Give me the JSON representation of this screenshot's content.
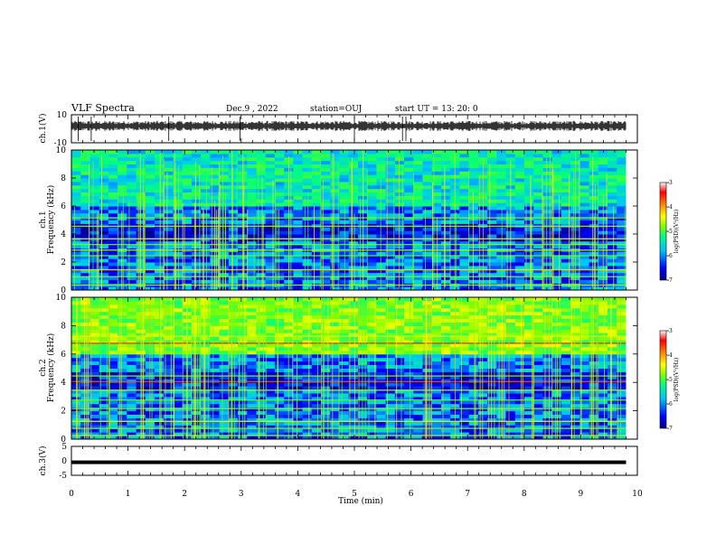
{
  "header": {
    "title": "VLF Spectra",
    "date": "Dec.9  , 2022",
    "station": "station=OUJ",
    "start": "start  UT  =   13: 20: 0"
  },
  "chart_data": [
    {
      "type": "line",
      "panel": "ch1-waveform",
      "ylabel": "ch.1(V)",
      "ylim": [
        -10,
        10
      ],
      "y_ticks": [
        "10",
        "-10"
      ],
      "xlim": [
        0,
        10
      ],
      "baseline_value": 2,
      "noise_amplitude": 3,
      "data_end_min": 9.8
    },
    {
      "type": "heatmap",
      "panel": "ch1-spectrogram",
      "ylabel_line1": "ch.1",
      "ylabel_line2": "Frequency (kHz)",
      "ylim_khz": [
        0,
        10
      ],
      "y_ticks": [
        "0",
        "2",
        "4",
        "6",
        "8",
        "10"
      ],
      "xlim": [
        0,
        10
      ],
      "data_end_min": 9.8,
      "colorbar": {
        "label": "log(PSD)(V²/Hz)",
        "ticks": [
          "-3",
          "-4",
          "-5",
          "-6",
          "-7"
        ],
        "range": [
          -7,
          -3
        ]
      }
    },
    {
      "type": "heatmap",
      "panel": "ch2-spectrogram",
      "ylabel_line1": "ch.2",
      "ylabel_line2": "Frequency (kHz)",
      "ylim_khz": [
        0,
        10
      ],
      "y_ticks": [
        "0",
        "2",
        "4",
        "6",
        "8",
        "10"
      ],
      "xlim": [
        0,
        10
      ],
      "data_end_min": 9.8,
      "colorbar": {
        "label": "log(PSD)(V²/Hz)",
        "ticks": [
          "-3",
          "-4",
          "-5",
          "-6",
          "-7"
        ],
        "range": [
          -7,
          -3
        ]
      }
    },
    {
      "type": "line",
      "panel": "ch3-waveform",
      "ylabel": "ch.3(V)",
      "ylim": [
        -5,
        5
      ],
      "y_ticks": [
        "5",
        "0",
        "-5"
      ],
      "xlim": [
        0,
        10
      ],
      "constant_value": -0.5,
      "data_end_min": 9.8
    }
  ],
  "x_axis": {
    "label": "Time (min)",
    "ticks": [
      "0",
      "1",
      "2",
      "3",
      "4",
      "5",
      "6",
      "7",
      "8",
      "9",
      "10"
    ]
  },
  "colors": {
    "colormap": [
      "#000080",
      "#0000ff",
      "#00c0ff",
      "#00ff80",
      "#80ff00",
      "#ffff00",
      "#ff8000",
      "#ff0000",
      "#800000"
    ]
  }
}
